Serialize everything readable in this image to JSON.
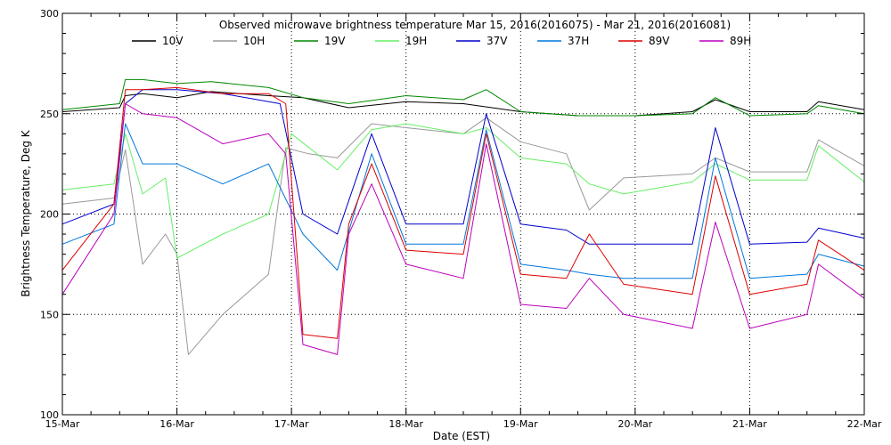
{
  "chart_data": {
    "type": "line",
    "title": "Observed microwave brightness temperature Mar 15, 2016(2016075) - Mar 21, 2016(2016081)",
    "xlabel": "Date (EST)",
    "ylabel": "Brightness Temperature, Deg K",
    "ylim": [
      100,
      300
    ],
    "y_ticks": [
      100,
      150,
      200,
      250,
      300
    ],
    "y_tick_labels": [
      "100",
      "150",
      "200",
      "250",
      "300"
    ],
    "x_ticks": [
      "2016-03-15",
      "2016-03-16",
      "2016-03-17",
      "2016-03-18",
      "2016-03-19",
      "2016-03-20",
      "2016-03-21",
      "2016-03-22"
    ],
    "x_tick_labels": [
      "15-Mar",
      "16-Mar",
      "17-Mar",
      "18-Mar",
      "19-Mar",
      "20-Mar",
      "21-Mar",
      "22-Mar"
    ],
    "xlim": [
      "2016-03-15",
      "2016-03-22"
    ],
    "grid": true,
    "legend_position": "top",
    "series": [
      {
        "name": "10V",
        "color": "#000000",
        "x": [
          "2016-03-15T00:00",
          "2016-03-15T12:00",
          "2016-03-15T13:12",
          "2016-03-15T16:48",
          "2016-03-16T00:00",
          "2016-03-16T07:12",
          "2016-03-16T19:12",
          "2016-03-17T02:24",
          "2016-03-17T12:00",
          "2016-03-18T00:00",
          "2016-03-18T12:00",
          "2016-03-19T00:00",
          "2016-03-19T12:00",
          "2016-03-20T00:00",
          "2016-03-20T12:00",
          "2016-03-20T16:48",
          "2016-03-21T00:00",
          "2016-03-21T12:00",
          "2016-03-21T14:24",
          "2016-03-22T00:00"
        ],
        "y": [
          251,
          253,
          259,
          260,
          258,
          261,
          259,
          258,
          253,
          256,
          255,
          251,
          249,
          249,
          251,
          257,
          251,
          251,
          256,
          252
        ]
      },
      {
        "name": "10H",
        "color": "#999999",
        "x": [
          "2016-03-15T00:00",
          "2016-03-15T10:48",
          "2016-03-15T13:12",
          "2016-03-15T16:48",
          "2016-03-15T21:36",
          "2016-03-16T00:00",
          "2016-03-16T02:24",
          "2016-03-16T09:36",
          "2016-03-16T19:12",
          "2016-03-16T22:48",
          "2016-03-17T03:36",
          "2016-03-17T09:36",
          "2016-03-17T16:48",
          "2016-03-18T00:00",
          "2016-03-18T12:00",
          "2016-03-18T16:48",
          "2016-03-19T00:00",
          "2016-03-19T09:36",
          "2016-03-19T14:24",
          "2016-03-19T21:36",
          "2016-03-20T12:00",
          "2016-03-20T16:48",
          "2016-03-21T00:00",
          "2016-03-21T12:00",
          "2016-03-21T14:24",
          "2016-03-22T00:00"
        ],
        "y": [
          205,
          208,
          232,
          175,
          190,
          180,
          130,
          150,
          170,
          233,
          230,
          228,
          245,
          243,
          240,
          248,
          236,
          230,
          202,
          218,
          220,
          228,
          221,
          221,
          237,
          224
        ]
      },
      {
        "name": "19V",
        "color": "#008800",
        "x": [
          "2016-03-15T00:00",
          "2016-03-15T12:00",
          "2016-03-15T13:12",
          "2016-03-15T16:48",
          "2016-03-16T00:00",
          "2016-03-16T07:12",
          "2016-03-16T19:12",
          "2016-03-17T02:24",
          "2016-03-17T12:00",
          "2016-03-18T00:00",
          "2016-03-18T12:00",
          "2016-03-18T16:48",
          "2016-03-19T00:00",
          "2016-03-19T12:00",
          "2016-03-20T00:00",
          "2016-03-20T12:00",
          "2016-03-20T16:48",
          "2016-03-21T00:00",
          "2016-03-21T12:00",
          "2016-03-21T14:24",
          "2016-03-22T00:00"
        ],
        "y": [
          252,
          255,
          267,
          267,
          265,
          266,
          263,
          258,
          255,
          259,
          257,
          262,
          251,
          249,
          249,
          250,
          258,
          249,
          250,
          254,
          250
        ]
      },
      {
        "name": "19H",
        "color": "#66ee66",
        "x": [
          "2016-03-15T00:00",
          "2016-03-15T10:48",
          "2016-03-15T13:12",
          "2016-03-15T16:48",
          "2016-03-15T21:36",
          "2016-03-16T00:00",
          "2016-03-16T09:36",
          "2016-03-16T19:12",
          "2016-03-17T00:00",
          "2016-03-17T09:36",
          "2016-03-17T16:48",
          "2016-03-18T00:00",
          "2016-03-18T12:00",
          "2016-03-18T16:48",
          "2016-03-19T00:00",
          "2016-03-19T09:36",
          "2016-03-19T14:24",
          "2016-03-19T21:36",
          "2016-03-20T12:00",
          "2016-03-20T16:48",
          "2016-03-21T00:00",
          "2016-03-21T12:00",
          "2016-03-21T14:24",
          "2016-03-22T00:00"
        ],
        "y": [
          212,
          215,
          240,
          210,
          218,
          178,
          190,
          200,
          240,
          222,
          242,
          245,
          240,
          243,
          228,
          225,
          215,
          210,
          216,
          225,
          217,
          217,
          234,
          216
        ]
      },
      {
        "name": "37V",
        "color": "#0000cc",
        "x": [
          "2016-03-15T00:00",
          "2016-03-15T10:48",
          "2016-03-15T13:12",
          "2016-03-15T16:48",
          "2016-03-16T00:00",
          "2016-03-16T09:36",
          "2016-03-16T21:36",
          "2016-03-17T02:24",
          "2016-03-17T09:36",
          "2016-03-17T16:48",
          "2016-03-18T00:00",
          "2016-03-18T12:00",
          "2016-03-18T16:48",
          "2016-03-19T00:00",
          "2016-03-19T09:36",
          "2016-03-19T14:24",
          "2016-03-19T21:36",
          "2016-03-20T12:00",
          "2016-03-20T16:48",
          "2016-03-21T00:00",
          "2016-03-21T12:00",
          "2016-03-21T14:24",
          "2016-03-22T00:00"
        ],
        "y": [
          195,
          205,
          255,
          262,
          262,
          260,
          255,
          200,
          190,
          240,
          195,
          195,
          250,
          195,
          192,
          185,
          185,
          185,
          243,
          185,
          186,
          193,
          188
        ]
      },
      {
        "name": "37H",
        "color": "#0077dd",
        "x": [
          "2016-03-15T00:00",
          "2016-03-15T10:48",
          "2016-03-15T13:12",
          "2016-03-15T16:48",
          "2016-03-16T00:00",
          "2016-03-16T09:36",
          "2016-03-16T19:12",
          "2016-03-17T02:24",
          "2016-03-17T09:36",
          "2016-03-17T16:48",
          "2016-03-18T00:00",
          "2016-03-18T12:00",
          "2016-03-18T16:48",
          "2016-03-19T00:00",
          "2016-03-19T09:36",
          "2016-03-19T14:24",
          "2016-03-19T21:36",
          "2016-03-20T12:00",
          "2016-03-20T16:48",
          "2016-03-21T00:00",
          "2016-03-21T12:00",
          "2016-03-21T14:24",
          "2016-03-22T00:00"
        ],
        "y": [
          185,
          195,
          245,
          225,
          225,
          215,
          225,
          190,
          172,
          230,
          185,
          185,
          242,
          175,
          172,
          170,
          168,
          168,
          228,
          168,
          170,
          180,
          174
        ]
      },
      {
        "name": "89V",
        "color": "#dd0000",
        "x": [
          "2016-03-15T00:00",
          "2016-03-15T10:48",
          "2016-03-15T13:12",
          "2016-03-15T16:48",
          "2016-03-16T00:00",
          "2016-03-16T09:36",
          "2016-03-16T19:12",
          "2016-03-16T22:48",
          "2016-03-17T02:24",
          "2016-03-17T09:36",
          "2016-03-17T12:00",
          "2016-03-17T16:48",
          "2016-03-18T00:00",
          "2016-03-18T12:00",
          "2016-03-18T16:48",
          "2016-03-19T00:00",
          "2016-03-19T09:36",
          "2016-03-19T14:24",
          "2016-03-19T21:36",
          "2016-03-20T12:00",
          "2016-03-20T16:48",
          "2016-03-21T00:00",
          "2016-03-21T12:00",
          "2016-03-21T14:24",
          "2016-03-22T00:00"
        ],
        "y": [
          172,
          205,
          262,
          262,
          263,
          260,
          260,
          255,
          140,
          138,
          195,
          225,
          182,
          180,
          240,
          170,
          168,
          190,
          165,
          160,
          219,
          160,
          165,
          187,
          172
        ]
      },
      {
        "name": "89H",
        "color": "#bb00bb",
        "x": [
          "2016-03-15T00:00",
          "2016-03-15T10:48",
          "2016-03-15T13:12",
          "2016-03-15T16:48",
          "2016-03-16T00:00",
          "2016-03-16T09:36",
          "2016-03-16T19:12",
          "2016-03-16T22:48",
          "2016-03-17T02:24",
          "2016-03-17T09:36",
          "2016-03-17T12:00",
          "2016-03-17T16:48",
          "2016-03-18T00:00",
          "2016-03-18T12:00",
          "2016-03-18T16:48",
          "2016-03-19T00:00",
          "2016-03-19T09:36",
          "2016-03-19T14:24",
          "2016-03-19T21:36",
          "2016-03-20T12:00",
          "2016-03-20T16:48",
          "2016-03-21T00:00",
          "2016-03-21T12:00",
          "2016-03-21T14:24",
          "2016-03-22T00:00"
        ],
        "y": [
          160,
          200,
          255,
          250,
          248,
          235,
          240,
          230,
          135,
          130,
          190,
          215,
          175,
          168,
          235,
          155,
          153,
          168,
          150,
          143,
          196,
          143,
          150,
          175,
          158
        ]
      }
    ]
  }
}
